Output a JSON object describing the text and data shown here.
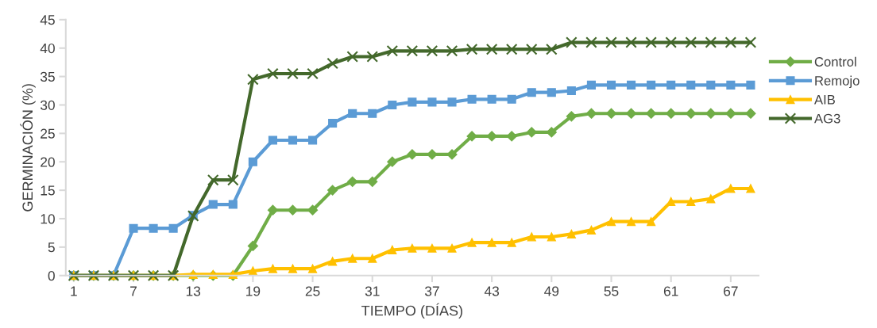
{
  "chart_data": {
    "type": "line",
    "xlabel": "TIEMPO (DÍAS)",
    "ylabel": "GERMINACIÓN (%)",
    "categories": [
      "1",
      null,
      null,
      "7",
      null,
      null,
      "13",
      null,
      null,
      "19",
      null,
      null,
      "25",
      null,
      null,
      "31",
      null,
      null,
      "37",
      null,
      null,
      "43",
      null,
      null,
      "49",
      null,
      null,
      "55",
      null,
      null,
      "61",
      null,
      null,
      "67",
      null
    ],
    "ylim": [
      0,
      45
    ],
    "yticks": [
      0,
      5,
      10,
      15,
      20,
      25,
      30,
      35,
      40,
      45
    ],
    "grid": false,
    "legend": "right",
    "line_style": "solid",
    "series": [
      {
        "name": "Control",
        "color": "#70ad47",
        "marker": "diamond",
        "values": [
          0,
          0,
          0,
          0,
          0,
          0,
          0,
          0,
          0,
          5.2,
          11.5,
          11.5,
          11.5,
          15,
          16.5,
          16.5,
          20,
          21.3,
          21.3,
          21.3,
          24.5,
          24.5,
          24.5,
          25.2,
          25.2,
          28,
          28.5,
          28.5,
          28.5,
          28.5,
          28.5,
          28.5,
          28.5,
          28.5,
          28.5
        ]
      },
      {
        "name": "Remojo",
        "color": "#5b9bd5",
        "marker": "square",
        "values": [
          0,
          0,
          0,
          8.3,
          8.3,
          8.3,
          10.6,
          12.5,
          12.5,
          20,
          23.8,
          23.8,
          23.8,
          26.8,
          28.5,
          28.5,
          30,
          30.5,
          30.5,
          30.5,
          31,
          31,
          31,
          32.2,
          32.2,
          32.5,
          33.5,
          33.5,
          33.5,
          33.5,
          33.5,
          33.5,
          33.5,
          33.5,
          33.5
        ]
      },
      {
        "name": "AIB",
        "color": "#ffc000",
        "marker": "triangle",
        "values": [
          0,
          0,
          0,
          0,
          0,
          0,
          0.2,
          0.2,
          0.2,
          0.8,
          1.2,
          1.2,
          1.2,
          2.5,
          3,
          3,
          4.5,
          4.8,
          4.8,
          4.8,
          5.8,
          5.8,
          5.8,
          6.8,
          6.8,
          7.3,
          8,
          9.5,
          9.5,
          9.5,
          13,
          13,
          13.5,
          15.3,
          15.3
        ]
      },
      {
        "name": "AG3",
        "color": "#43682b",
        "marker": "cross",
        "values": [
          0,
          0,
          0,
          0,
          0,
          0,
          10.5,
          16.8,
          16.8,
          34.5,
          35.5,
          35.5,
          35.5,
          37.3,
          38.5,
          38.5,
          39.5,
          39.5,
          39.5,
          39.5,
          39.8,
          39.8,
          39.8,
          39.8,
          39.8,
          41,
          41,
          41,
          41,
          41,
          41,
          41,
          41,
          41,
          41
        ]
      }
    ]
  }
}
